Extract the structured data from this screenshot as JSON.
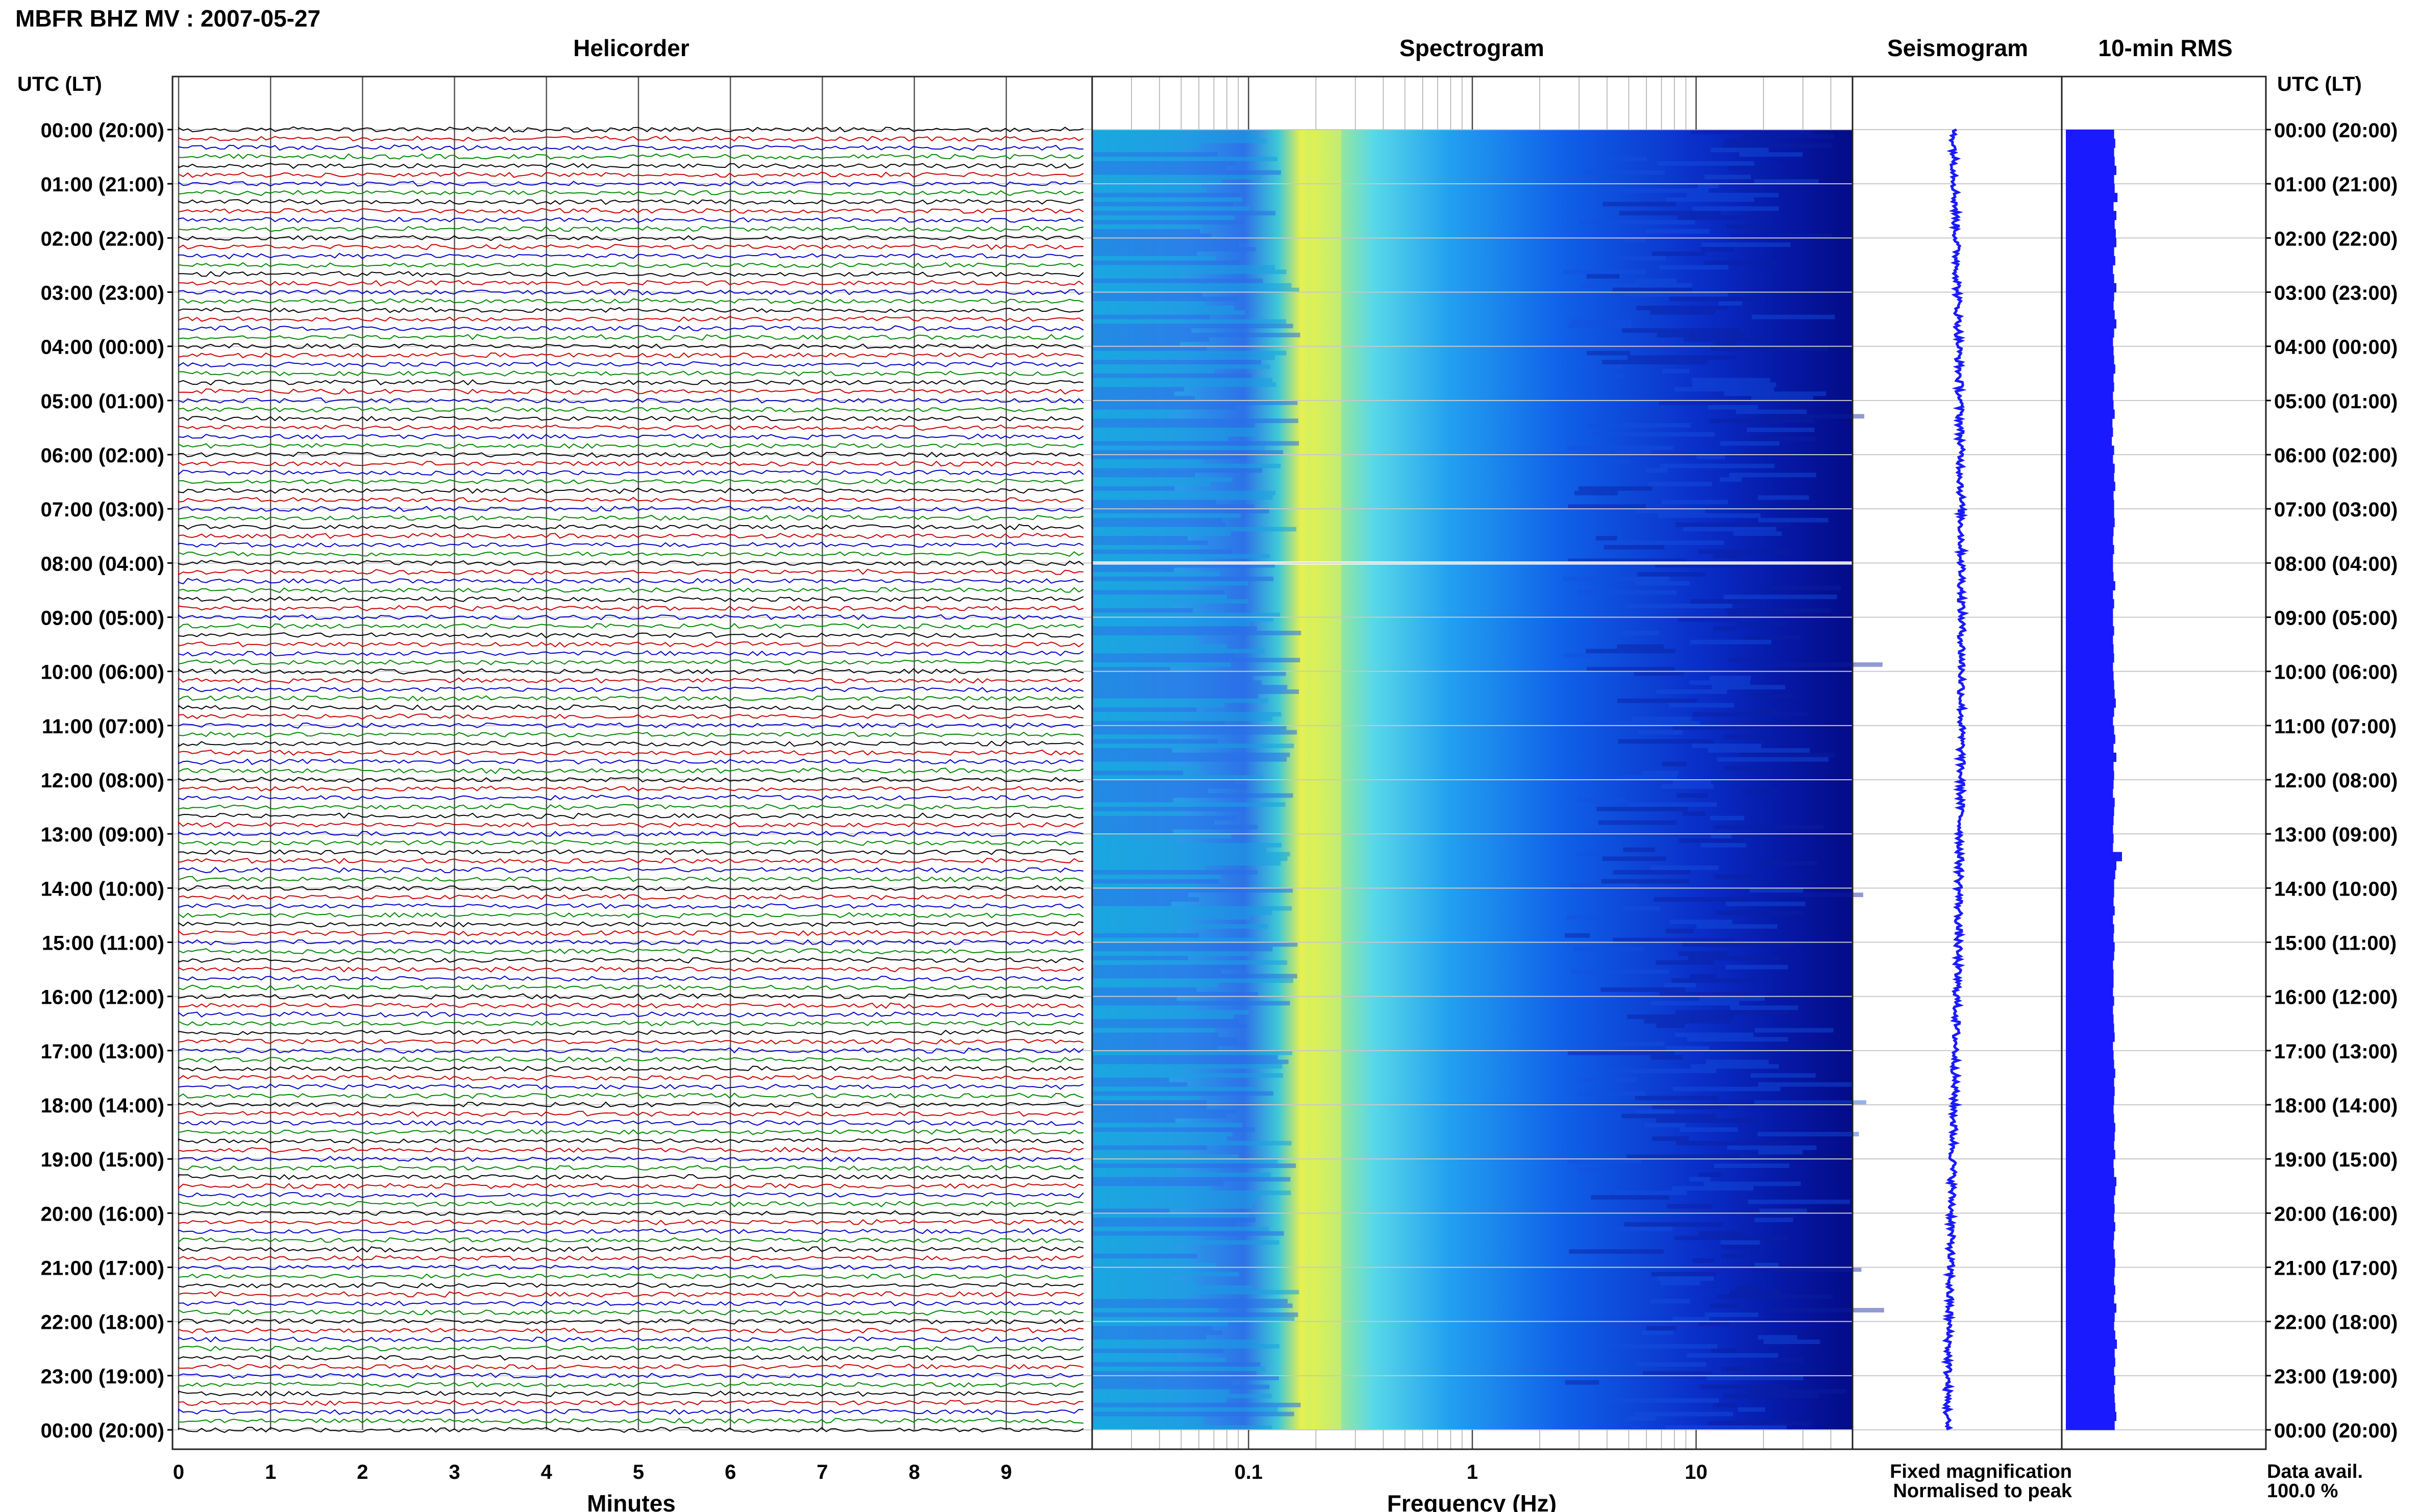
{
  "header": {
    "title": "MBFR BHZ MV : 2007-05-27"
  },
  "panels": {
    "helicorder": "Helicorder",
    "spectrogram": "Spectrogram",
    "seismogram": "Seismogram",
    "rms": "10-min RMS"
  },
  "axis": {
    "time_label": "UTC (LT)",
    "minutes_label": "Minutes",
    "frequency_label": "Frequency (Hz)"
  },
  "legend": {
    "fixed": "Fixed magnification",
    "normalised": "Normalised to peak",
    "fixed_color": "#1a1aff",
    "normalised_color": "#ff1a1a"
  },
  "data_avail": {
    "label": "Data avail.",
    "value": "100.0 %"
  },
  "colors": {
    "trace_cycle": [
      "#000000",
      "#cc0000",
      "#0000cc",
      "#008800"
    ],
    "rms_bar": "#1a1aff",
    "seismogram": "#1a1aff"
  },
  "chart_data": [
    {
      "type": "line",
      "name": "Helicorder",
      "x_ticks": [
        "0",
        "1",
        "2",
        "3",
        "4",
        "5",
        "6",
        "7",
        "8",
        "9"
      ],
      "xlabel": "Minutes",
      "xlim": [
        0,
        10
      ],
      "ylabel": "UTC (LT)",
      "y_ticks": [
        "00:00 (20:00)",
        "01:00 (21:00)",
        "02:00 (22:00)",
        "03:00 (23:00)",
        "04:00 (00:00)",
        "05:00 (01:00)",
        "06:00 (02:00)",
        "07:00 (03:00)",
        "08:00 (04:00)",
        "09:00 (05:00)",
        "10:00 (06:00)",
        "11:00 (07:00)",
        "12:00 (08:00)",
        "13:00 (09:00)",
        "14:00 (10:00)",
        "15:00 (11:00)",
        "16:00 (12:00)",
        "17:00 (13:00)",
        "18:00 (14:00)",
        "19:00 (15:00)",
        "20:00 (16:00)",
        "21:00 (17:00)",
        "22:00 (18:00)",
        "23:00 (19:00)",
        "00:00 (20:00)"
      ],
      "traces_per_hour": 6,
      "grid": true
    },
    {
      "type": "heatmap",
      "name": "Spectrogram",
      "xlabel": "Frequency (Hz)",
      "x_scale": "log",
      "x_ticks": [
        "0.1",
        "1",
        "10"
      ],
      "xlim": [
        0.02,
        50
      ],
      "ridge_hz": 0.2,
      "gap_at": "08:00",
      "grid": true
    },
    {
      "type": "line",
      "name": "Seismogram",
      "grid": true
    },
    {
      "type": "bar",
      "name": "10-min RMS",
      "values": [
        0.86,
        0.88,
        0.86,
        0.87,
        0.9,
        0.86,
        0.87,
        0.92,
        0.85,
        0.9,
        0.87,
        0.89,
        0.9,
        0.86,
        0.88,
        0.84,
        0.86,
        0.9,
        0.86,
        0.85,
        0.87,
        0.9,
        0.86,
        0.84,
        0.85,
        0.86,
        0.88,
        0.85,
        0.86,
        0.84,
        0.85,
        0.87,
        0.83,
        0.84,
        0.82,
        0.86,
        0.84,
        0.87,
        0.86,
        0.88,
        0.85,
        0.86,
        0.86,
        0.87,
        0.85,
        0.84,
        0.86,
        0.84,
        0.84,
        0.85,
        0.88,
        0.84,
        0.86,
        0.84,
        0.84,
        0.86,
        0.84,
        0.85,
        0.86,
        0.84,
        0.85,
        0.86,
        0.87,
        0.89,
        0.86,
        0.84,
        0.86,
        0.88,
        0.85,
        0.9,
        0.85,
        0.86,
        0.85,
        0.84,
        0.87,
        0.86,
        0.85,
        0.84,
        0.85,
        0.84,
        1.0,
        0.9,
        0.88,
        0.86,
        0.86,
        0.85,
        0.87,
        0.84,
        0.86,
        0.85,
        0.87,
        0.86,
        0.84,
        0.85,
        0.85,
        0.84,
        0.86,
        0.84,
        0.85,
        0.86,
        0.87,
        0.84,
        0.85,
        0.86,
        0.88,
        0.86,
        0.87,
        0.86,
        0.85,
        0.86,
        0.88,
        0.87,
        0.86,
        0.88,
        0.85,
        0.86,
        0.9,
        0.88,
        0.86,
        0.87,
        0.86,
        0.88,
        0.86,
        0.85,
        0.87,
        0.88,
        0.87,
        0.86,
        0.88,
        0.86,
        0.9,
        0.87,
        0.86,
        0.88,
        0.91,
        0.87,
        0.88,
        0.86,
        0.88,
        0.86,
        0.87,
        0.88,
        0.9,
        0.87
      ],
      "bars_per_hour": 6,
      "grid": true
    }
  ]
}
